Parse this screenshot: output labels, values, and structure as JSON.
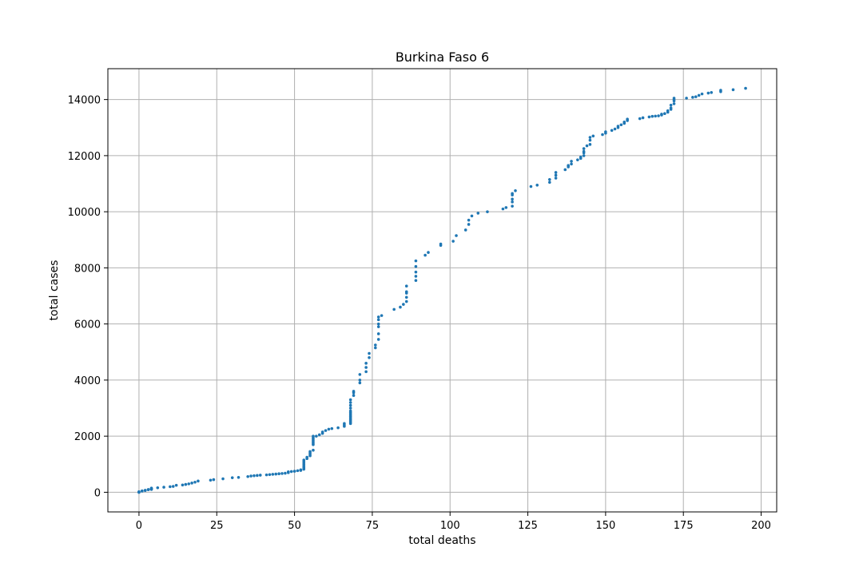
{
  "chart_data": {
    "type": "scatter",
    "title": "Burkina Faso 6",
    "xlabel": "total deaths",
    "ylabel": "total cases",
    "xlim": [
      -10,
      205
    ],
    "ylim": [
      -700,
      15100
    ],
    "xticks": [
      0,
      25,
      50,
      75,
      100,
      125,
      150,
      175,
      200
    ],
    "yticks": [
      0,
      2000,
      4000,
      6000,
      8000,
      10000,
      12000,
      14000
    ],
    "grid": true,
    "marker_color": "#1f77b4",
    "series": [
      {
        "points": [
          [
            0,
            0
          ],
          [
            0,
            2
          ],
          [
            0,
            3
          ],
          [
            0,
            20
          ],
          [
            1,
            40
          ],
          [
            1,
            50
          ],
          [
            2,
            64
          ],
          [
            2,
            70
          ],
          [
            3,
            90
          ],
          [
            3,
            100
          ],
          [
            4,
            100
          ],
          [
            4,
            120
          ],
          [
            4,
            130
          ],
          [
            4,
            150
          ],
          [
            6,
            160
          ],
          [
            8,
            180
          ],
          [
            10,
            200
          ],
          [
            11,
            210
          ],
          [
            12,
            250
          ],
          [
            14,
            260
          ],
          [
            15,
            280
          ],
          [
            16,
            300
          ],
          [
            17,
            330
          ],
          [
            18,
            360
          ],
          [
            19,
            400
          ],
          [
            23,
            430
          ],
          [
            24,
            450
          ],
          [
            27,
            480
          ],
          [
            30,
            520
          ],
          [
            32,
            530
          ],
          [
            35,
            560
          ],
          [
            36,
            580
          ],
          [
            37,
            590
          ],
          [
            38,
            600
          ],
          [
            39,
            610
          ],
          [
            41,
            620
          ],
          [
            42,
            630
          ],
          [
            43,
            640
          ],
          [
            44,
            650
          ],
          [
            45,
            660
          ],
          [
            46,
            670
          ],
          [
            47,
            680
          ],
          [
            48,
            700
          ],
          [
            48,
            730
          ],
          [
            49,
            740
          ],
          [
            50,
            750
          ],
          [
            51,
            770
          ],
          [
            52,
            780
          ],
          [
            52,
            800
          ],
          [
            53,
            820
          ],
          [
            53,
            850
          ],
          [
            53,
            880
          ],
          [
            53,
            900
          ],
          [
            53,
            950
          ],
          [
            53,
            1000
          ],
          [
            53,
            1050
          ],
          [
            53,
            1100
          ],
          [
            53,
            1150
          ],
          [
            54,
            1200
          ],
          [
            54,
            1250
          ],
          [
            55,
            1300
          ],
          [
            55,
            1350
          ],
          [
            55,
            1400
          ],
          [
            55,
            1450
          ],
          [
            56,
            1500
          ],
          [
            56,
            1700
          ],
          [
            56,
            1750
          ],
          [
            56,
            1800
          ],
          [
            56,
            1850
          ],
          [
            56,
            1900
          ],
          [
            56,
            1950
          ],
          [
            56,
            2000
          ],
          [
            57,
            2000
          ],
          [
            58,
            2050
          ],
          [
            59,
            2100
          ],
          [
            59,
            2150
          ],
          [
            60,
            2200
          ],
          [
            61,
            2250
          ],
          [
            62,
            2270
          ],
          [
            64,
            2300
          ],
          [
            66,
            2350
          ],
          [
            66,
            2400
          ],
          [
            66,
            2450
          ],
          [
            68,
            2450
          ],
          [
            68,
            2500
          ],
          [
            68,
            2550
          ],
          [
            68,
            2600
          ],
          [
            68,
            2650
          ],
          [
            68,
            2700
          ],
          [
            68,
            2750
          ],
          [
            68,
            2800
          ],
          [
            68,
            2850
          ],
          [
            68,
            2900
          ],
          [
            68,
            3000
          ],
          [
            68,
            3100
          ],
          [
            68,
            3200
          ],
          [
            68,
            3300
          ],
          [
            69,
            3450
          ],
          [
            69,
            3550
          ],
          [
            69,
            3600
          ],
          [
            71,
            3900
          ],
          [
            71,
            4000
          ],
          [
            71,
            4200
          ],
          [
            73,
            4300
          ],
          [
            73,
            4450
          ],
          [
            73,
            4600
          ],
          [
            74,
            4800
          ],
          [
            74,
            4950
          ],
          [
            76,
            5150
          ],
          [
            76,
            5250
          ],
          [
            77,
            5450
          ],
          [
            77,
            5650
          ],
          [
            77,
            5900
          ],
          [
            77,
            6000
          ],
          [
            77,
            6150
          ],
          [
            77,
            6250
          ],
          [
            78,
            6300
          ],
          [
            82,
            6520
          ],
          [
            84,
            6600
          ],
          [
            85,
            6700
          ],
          [
            86,
            6800
          ],
          [
            86,
            6950
          ],
          [
            86,
            7100
          ],
          [
            86,
            7150
          ],
          [
            86,
            7350
          ],
          [
            89,
            7550
          ],
          [
            89,
            7700
          ],
          [
            89,
            7850
          ],
          [
            89,
            8050
          ],
          [
            89,
            8250
          ],
          [
            92,
            8450
          ],
          [
            93,
            8550
          ],
          [
            97,
            8800
          ],
          [
            97,
            8850
          ],
          [
            101,
            8950
          ],
          [
            102,
            9150
          ],
          [
            105,
            9350
          ],
          [
            106,
            9550
          ],
          [
            106,
            9700
          ],
          [
            107,
            9850
          ],
          [
            109,
            9950
          ],
          [
            112,
            10000
          ],
          [
            117,
            10100
          ],
          [
            118,
            10150
          ],
          [
            120,
            10200
          ],
          [
            120,
            10350
          ],
          [
            120,
            10450
          ],
          [
            120,
            10600
          ],
          [
            120,
            10650
          ],
          [
            121,
            10750
          ],
          [
            126,
            10900
          ],
          [
            128,
            10950
          ],
          [
            132,
            11050
          ],
          [
            132,
            11150
          ],
          [
            134,
            11200
          ],
          [
            134,
            11300
          ],
          [
            134,
            11400
          ],
          [
            137,
            11500
          ],
          [
            138,
            11600
          ],
          [
            138,
            11650
          ],
          [
            139,
            11700
          ],
          [
            139,
            11800
          ],
          [
            141,
            11850
          ],
          [
            142,
            11900
          ],
          [
            142,
            11950
          ],
          [
            143,
            12000
          ],
          [
            143,
            12100
          ],
          [
            143,
            12150
          ],
          [
            143,
            12250
          ],
          [
            144,
            12350
          ],
          [
            145,
            12400
          ],
          [
            145,
            12550
          ],
          [
            145,
            12650
          ],
          [
            146,
            12700
          ],
          [
            149,
            12750
          ],
          [
            150,
            12800
          ],
          [
            150,
            12850
          ],
          [
            152,
            12900
          ],
          [
            153,
            12950
          ],
          [
            154,
            13000
          ],
          [
            154,
            13050
          ],
          [
            155,
            13100
          ],
          [
            156,
            13150
          ],
          [
            156,
            13200
          ],
          [
            157,
            13250
          ],
          [
            157,
            13300
          ],
          [
            161,
            13320
          ],
          [
            162,
            13350
          ],
          [
            164,
            13380
          ],
          [
            165,
            13400
          ],
          [
            166,
            13410
          ],
          [
            167,
            13420
          ],
          [
            168,
            13450
          ],
          [
            168,
            13480
          ],
          [
            169,
            13500
          ],
          [
            170,
            13550
          ],
          [
            170,
            13600
          ],
          [
            171,
            13650
          ],
          [
            171,
            13700
          ],
          [
            171,
            13800
          ],
          [
            172,
            13850
          ],
          [
            172,
            13950
          ],
          [
            172,
            14000
          ],
          [
            172,
            14050
          ],
          [
            176,
            14050
          ],
          [
            178,
            14080
          ],
          [
            179,
            14100
          ],
          [
            180,
            14150
          ],
          [
            181,
            14200
          ],
          [
            183,
            14230
          ],
          [
            184,
            14250
          ],
          [
            187,
            14280
          ],
          [
            187,
            14330
          ],
          [
            191,
            14350
          ],
          [
            195,
            14400
          ]
        ]
      }
    ]
  }
}
